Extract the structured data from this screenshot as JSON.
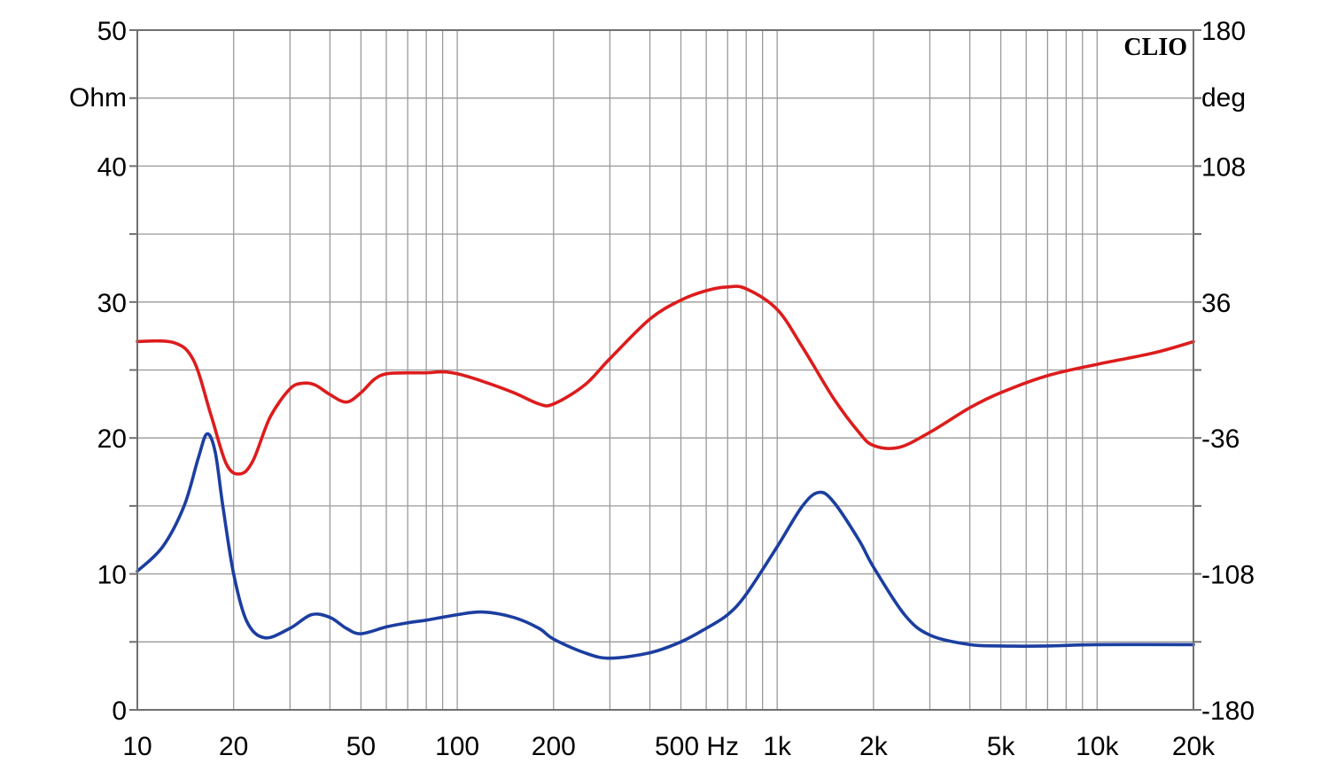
{
  "chart_data": {
    "type": "line",
    "brand": "CLIO",
    "x_scale": "log",
    "xlim": [
      10,
      20000
    ],
    "x_ticks": [
      {
        "value": 10,
        "label": "10"
      },
      {
        "value": 20,
        "label": "20"
      },
      {
        "value": 50,
        "label": "50"
      },
      {
        "value": 100,
        "label": "100"
      },
      {
        "value": 200,
        "label": "200"
      },
      {
        "value": 1000,
        "label": "1k"
      },
      {
        "value": 2000,
        "label": "2k"
      },
      {
        "value": 5000,
        "label": "5k"
      },
      {
        "value": 10000,
        "label": "10k"
      },
      {
        "value": 20000,
        "label": "20k"
      }
    ],
    "x_extra_label": "500 Hz",
    "y_left": {
      "unit": "Ohm",
      "lim": [
        0,
        50
      ],
      "ticks": [
        {
          "value": 0,
          "label": "0"
        },
        {
          "value": 10,
          "label": "10"
        },
        {
          "value": 20,
          "label": "20"
        },
        {
          "value": 30,
          "label": "30"
        },
        {
          "value": 40,
          "label": "40"
        },
        {
          "value": 50,
          "label": "50"
        }
      ]
    },
    "y_right": {
      "unit": "deg",
      "lim": [
        -180,
        180
      ],
      "ticks": [
        {
          "value": -180,
          "label": "-180"
        },
        {
          "value": -108,
          "label": "-108"
        },
        {
          "value": -36,
          "label": "-36"
        },
        {
          "value": 36,
          "label": "36"
        },
        {
          "value": 108,
          "label": "108"
        },
        {
          "value": 180,
          "label": "180"
        }
      ]
    },
    "grid": true,
    "series": [
      {
        "axis": "right",
        "color": "#dd1c1c",
        "points": [
          [
            10,
            15.1
          ],
          [
            13,
            14.5
          ],
          [
            15,
            5.0
          ],
          [
            17,
            -24.0
          ],
          [
            19,
            -50.0
          ],
          [
            21,
            -55.0
          ],
          [
            23,
            -48.0
          ],
          [
            26,
            -25.0
          ],
          [
            30,
            -10.0
          ],
          [
            33,
            -7.0
          ],
          [
            36,
            -8.0
          ],
          [
            40,
            -13.0
          ],
          [
            45,
            -17.0
          ],
          [
            50,
            -12.0
          ],
          [
            55,
            -5.0
          ],
          [
            60,
            -2.0
          ],
          [
            70,
            -1.5
          ],
          [
            80,
            -1.5
          ],
          [
            90,
            -1.0
          ],
          [
            100,
            -2.0
          ],
          [
            120,
            -6.0
          ],
          [
            150,
            -12.0
          ],
          [
            180,
            -18.0
          ],
          [
            200,
            -18.0
          ],
          [
            250,
            -8.0
          ],
          [
            300,
            6.0
          ],
          [
            400,
            27.0
          ],
          [
            500,
            37.0
          ],
          [
            600,
            42.0
          ],
          [
            700,
            44.0
          ],
          [
            800,
            43.0
          ],
          [
            1000,
            32.0
          ],
          [
            1200,
            12.0
          ],
          [
            1500,
            -15.0
          ],
          [
            1800,
            -33.0
          ],
          [
            2000,
            -40.0
          ],
          [
            2400,
            -41.0
          ],
          [
            3000,
            -33.0
          ],
          [
            4000,
            -20.0
          ],
          [
            5000,
            -12.0
          ],
          [
            7000,
            -3.0
          ],
          [
            10000,
            3.0
          ],
          [
            15000,
            9.0
          ],
          [
            20000,
            15.0
          ]
        ]
      },
      {
        "axis": "left",
        "color": "#1b3ea0",
        "points": [
          [
            10,
            10.2
          ],
          [
            12,
            12.0
          ],
          [
            14,
            15.0
          ],
          [
            15.5,
            18.5
          ],
          [
            16.5,
            20.3
          ],
          [
            17.5,
            19.0
          ],
          [
            18.5,
            15.0
          ],
          [
            20,
            10.0
          ],
          [
            22,
            6.5
          ],
          [
            25,
            5.3
          ],
          [
            30,
            6.0
          ],
          [
            35,
            7.0
          ],
          [
            40,
            6.8
          ],
          [
            45,
            6.0
          ],
          [
            50,
            5.6
          ],
          [
            60,
            6.1
          ],
          [
            70,
            6.4
          ],
          [
            80,
            6.6
          ],
          [
            100,
            7.0
          ],
          [
            120,
            7.2
          ],
          [
            150,
            6.8
          ],
          [
            180,
            6.0
          ],
          [
            200,
            5.2
          ],
          [
            250,
            4.2
          ],
          [
            300,
            3.8
          ],
          [
            400,
            4.2
          ],
          [
            500,
            5.0
          ],
          [
            600,
            6.0
          ],
          [
            700,
            7.0
          ],
          [
            800,
            8.5
          ],
          [
            1000,
            12.0
          ],
          [
            1200,
            15.0
          ],
          [
            1350,
            16.0
          ],
          [
            1500,
            15.3
          ],
          [
            1800,
            12.5
          ],
          [
            2000,
            10.5
          ],
          [
            2500,
            7.0
          ],
          [
            3000,
            5.5
          ],
          [
            4000,
            4.8
          ],
          [
            5000,
            4.7
          ],
          [
            7000,
            4.7
          ],
          [
            10000,
            4.8
          ],
          [
            20000,
            4.8
          ]
        ]
      }
    ]
  }
}
